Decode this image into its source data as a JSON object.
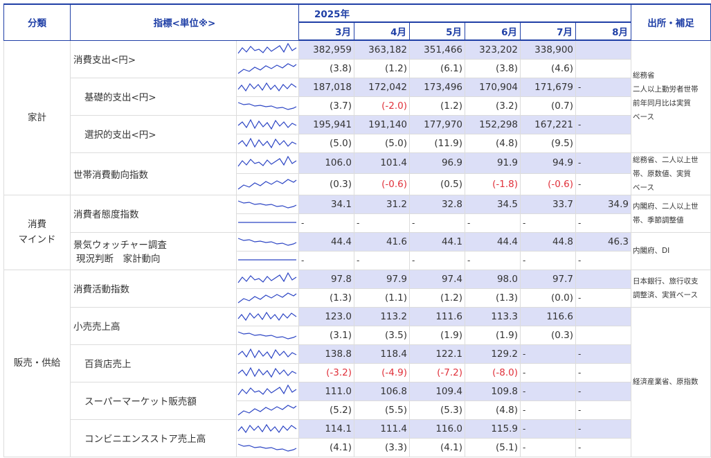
{
  "header": {
    "category": "分類",
    "indicator": "指標<単位※>",
    "year": "2025年",
    "months": [
      "3月",
      "4月",
      "5月",
      "6月",
      "7月",
      "8月"
    ],
    "source": "出所・補足"
  },
  "categories": [
    "家計",
    "消費\nマインド",
    "販売・供給"
  ],
  "indicators": [
    {
      "name": "消費支出<円>",
      "indent": false,
      "values": [
        "382,959",
        "363,182",
        "351,466",
        "323,202",
        "338,900",
        ""
      ],
      "changes": [
        "(3.8)",
        "(1.2)",
        "(6.1)",
        "(3.8)",
        "(4.6)",
        ""
      ]
    },
    {
      "name": "基礎的支出<円>",
      "indent": true,
      "values": [
        "187,018",
        "172,042",
        "173,496",
        "170,904",
        "171,679",
        "-"
      ],
      "changes": [
        "(3.7)",
        "(-2.0)",
        "(1.2)",
        "(3.2)",
        "(0.7)",
        ""
      ]
    },
    {
      "name": "選択的支出<円>",
      "indent": true,
      "values": [
        "195,941",
        "191,140",
        "177,970",
        "152,298",
        "167,221",
        "-"
      ],
      "changes": [
        "(5.0)",
        "(5.0)",
        "(11.9)",
        "(4.8)",
        "(9.5)",
        ""
      ]
    },
    {
      "name": "世帯消費動向指数",
      "indent": false,
      "values": [
        "106.0",
        "101.4",
        "96.9",
        "91.9",
        "94.9",
        "-"
      ],
      "changes": [
        "(0.3)",
        "(-0.6)",
        "(0.5)",
        "(-1.8)",
        "(-0.6)",
        "-"
      ]
    },
    {
      "name": "消費者態度指数",
      "indent": false,
      "values": [
        "34.1",
        "31.2",
        "32.8",
        "34.5",
        "33.7",
        "34.9"
      ],
      "changes": [
        "-",
        "-",
        "-",
        "-",
        "-",
        "-"
      ]
    },
    {
      "name": "景気ウォッチャー調査",
      "name2": "現況判断　家計動向",
      "indent": false,
      "values": [
        "44.4",
        "41.6",
        "44.1",
        "44.4",
        "44.8",
        "46.3"
      ],
      "changes": [
        "-",
        "-",
        "-",
        "-",
        "-",
        "-"
      ]
    },
    {
      "name": "消費活動指数",
      "indent": false,
      "values": [
        "97.8",
        "97.9",
        "97.4",
        "98.0",
        "97.7",
        ""
      ],
      "changes": [
        "(1.3)",
        "(1.1)",
        "(1.2)",
        "(1.3)",
        "(0.0)",
        "-"
      ]
    },
    {
      "name": "小売売上高",
      "indent": false,
      "values": [
        "123.0",
        "113.2",
        "111.6",
        "113.3",
        "116.6",
        ""
      ],
      "changes": [
        "(3.1)",
        "(3.5)",
        "(1.9)",
        "(1.9)",
        "(0.3)",
        ""
      ]
    },
    {
      "name": "百貨店売上",
      "indent": true,
      "values": [
        "138.8",
        "118.4",
        "122.1",
        "129.2",
        "-",
        "-"
      ],
      "changes": [
        "(-3.2)",
        "(-4.9)",
        "(-7.2)",
        "(-8.0)",
        "-",
        "-"
      ]
    },
    {
      "name": "スーパーマーケット販売額",
      "indent": true,
      "values": [
        "111.0",
        "106.8",
        "109.4",
        "109.8",
        "-",
        "-"
      ],
      "changes": [
        "(5.2)",
        "(5.5)",
        "(5.3)",
        "(4.8)",
        "-",
        "-"
      ]
    },
    {
      "name": "コンビニエンスストア売上高",
      "indent": true,
      "values": [
        "114.1",
        "111.4",
        "116.0",
        "115.9",
        "-",
        "-"
      ],
      "changes": [
        "(4.1)",
        "(3.3)",
        "(4.1)",
        "(5.1)",
        "-",
        "-"
      ]
    }
  ],
  "sources": [
    "総務省\n二人以上勤労者世帯\n前年同月比は実質\nベース",
    "総務省、二人以上世\n帯、原数値、実質\nベース",
    "内閣府、二人以上世\n帯、季節調整値",
    "内閣府、DI",
    "日本銀行、旅行収支\n調整済、実質ベース",
    "経済産業省、原指数"
  ],
  "colors": {
    "header": "#1f3fa6",
    "highlight": "#dcdff7",
    "negative": "#e0303a",
    "spark": "#2b44c4"
  }
}
